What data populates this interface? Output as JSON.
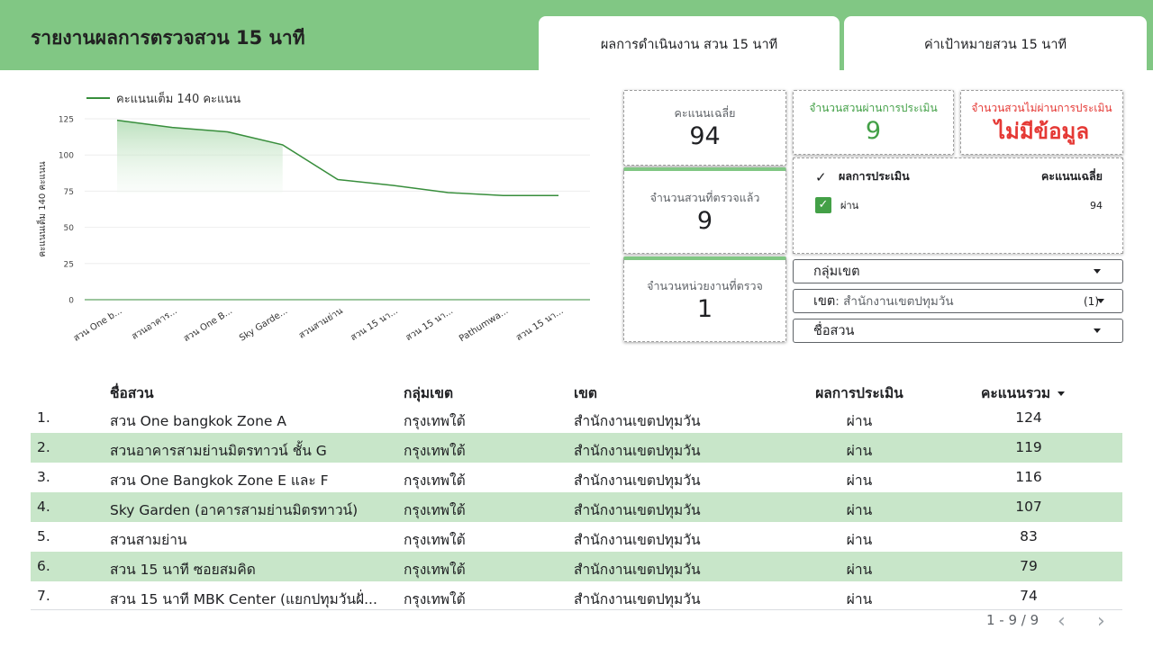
{
  "header": {
    "title": "รายงานผลการตรวจสวน 15 นาที",
    "tabs": [
      {
        "label": "ผลการดำเนินงาน สวน 15 นาที"
      },
      {
        "label": "ค่าเป้าหมายสวน 15 นาที"
      }
    ],
    "band_color": "#81c784"
  },
  "chart_data": {
    "type": "area",
    "legend": "คะแนนเต็ม 140 คะแนน",
    "legend_position": "top-left",
    "ylabel": "คะแนนเต็ม 140 คะแนน",
    "ylim": [
      0,
      125
    ],
    "yticks": [
      0,
      25,
      50,
      75,
      100,
      125
    ],
    "categories": [
      "สวน One b...",
      "สวนอาคาร...",
      "สวน One B...",
      "Sky Garde...",
      "สวนสามย่าน",
      "สวน 15 นา...",
      "สวน 15 นา...",
      "Pathumwa...",
      "สวน 15 นา..."
    ],
    "series": [
      {
        "name": "คะแนนเต็ม 140 คะแนน",
        "values": [
          124,
          119,
          116,
          107,
          83,
          79,
          74,
          72,
          72
        ],
        "color": "#388e3c"
      }
    ],
    "grid": true
  },
  "scorecards": {
    "avg": {
      "label": "คะแนนเฉลี่ย",
      "value": "94"
    },
    "pass": {
      "label": "จำนวนสวนผ่านการประเมิน",
      "value": "9"
    },
    "fail": {
      "label": "จำนวนสวนไม่ผ่านการประเมิน",
      "value": "ไม่มีข้อมูล"
    },
    "inspected": {
      "label": "จำนวนสวนที่ตรวจแล้ว",
      "value": "9"
    },
    "units": {
      "label": "จำนวนหน่วยงานที่ตรวจ",
      "value": "1"
    }
  },
  "mini_table": {
    "headers": {
      "result": "ผลการประเมิน",
      "avg": "คะแนนเฉลี่ย"
    },
    "rows": [
      {
        "result": "ผ่าน",
        "avg": "94",
        "checked": true
      }
    ]
  },
  "filters": {
    "group": {
      "label": "กลุ่มเขต"
    },
    "district": {
      "label": "เขต",
      "value": ": สำนักงานเขตปทุมวัน",
      "count": "(1)"
    },
    "park": {
      "label": "ชื่อสวน"
    }
  },
  "table": {
    "headers": {
      "name": "ชื่อสวน",
      "group": "กลุ่มเขต",
      "district": "เขต",
      "result": "ผลการประเมิน",
      "score": "คะแนนรวม"
    },
    "rows": [
      {
        "idx": "1.",
        "name": "สวน One bangkok Zone A",
        "group": "กรุงเทพใต้",
        "district": "สำนักงานเขตปทุมวัน",
        "result": "ผ่าน",
        "score": "124"
      },
      {
        "idx": "2.",
        "name": "สวนอาคารสามย่านมิตรทาวน์ ชั้น G",
        "group": "กรุงเทพใต้",
        "district": "สำนักงานเขตปทุมวัน",
        "result": "ผ่าน",
        "score": "119"
      },
      {
        "idx": "3.",
        "name": "สวน One Bangkok Zone E และ F",
        "group": "กรุงเทพใต้",
        "district": "สำนักงานเขตปทุมวัน",
        "result": "ผ่าน",
        "score": "116"
      },
      {
        "idx": "4.",
        "name": "Sky Garden (อาคารสามย่านมิตรทาวน์)",
        "group": "กรุงเทพใต้",
        "district": "สำนักงานเขตปทุมวัน",
        "result": "ผ่าน",
        "score": "107"
      },
      {
        "idx": "5.",
        "name": "สวนสามย่าน",
        "group": "กรุงเทพใต้",
        "district": "สำนักงานเขตปทุมวัน",
        "result": "ผ่าน",
        "score": "83"
      },
      {
        "idx": "6.",
        "name": "สวน 15 นาที ซอยสมคิด",
        "group": "กรุงเทพใต้",
        "district": "สำนักงานเขตปทุมวัน",
        "result": "ผ่าน",
        "score": "79"
      },
      {
        "idx": "7.",
        "name": "สวน 15 นาที MBK Center (แยกปทุมวันฝั่...",
        "group": "กรุงเทพใต้",
        "district": "สำนักงานเขตปทุมวัน",
        "result": "ผ่าน",
        "score": "74"
      }
    ],
    "pagination": "1 - 9 / 9",
    "prev_icon": "chevron-left-icon",
    "next_icon": "chevron-right-icon"
  }
}
